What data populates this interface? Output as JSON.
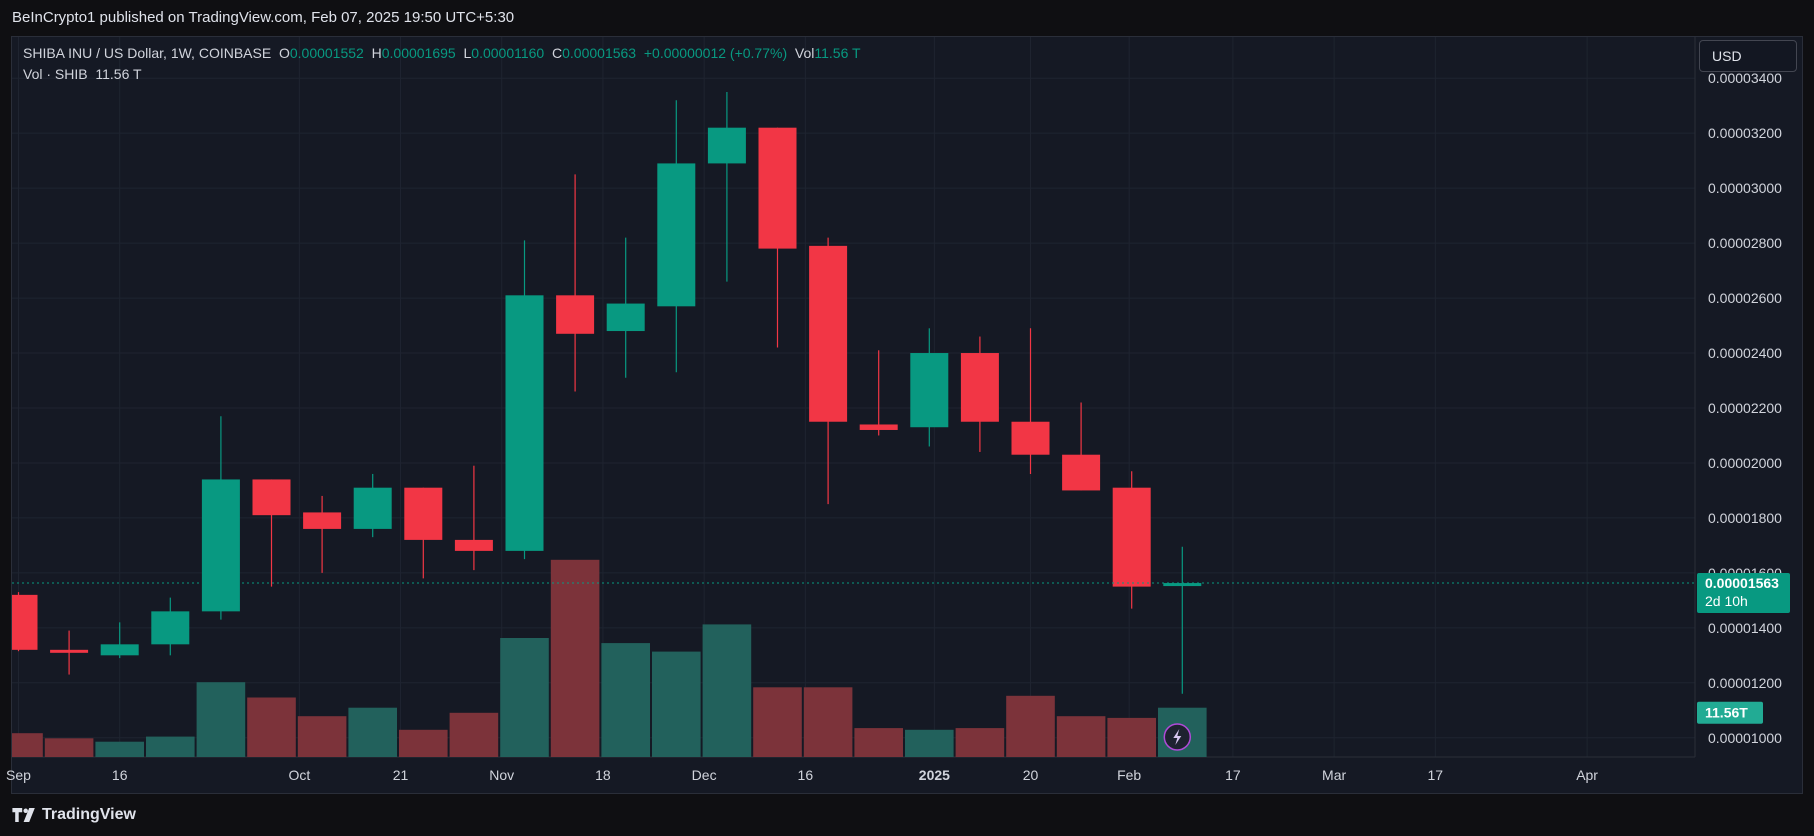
{
  "header": {
    "published_text": "BeInCrypto1 published on TradingView.com, Feb 07, 2025 19:50 UTC+5:30"
  },
  "legend": {
    "symbol": "SHIBA INU / US Dollar, 1W, COINBASE",
    "open_label": "O",
    "open": "0.00001552",
    "high_label": "H",
    "high": "0.00001695",
    "low_label": "L",
    "low": "0.00001160",
    "close_label": "C",
    "close": "0.00001563",
    "change": "+0.00000012 (+0.77%)",
    "vol_label": "Vol",
    "vol": "11.56 T",
    "volume_series": "Vol · SHIB",
    "volume_value": "11.56 T"
  },
  "currency_button": "USD",
  "footer": {
    "brand": "TradingView"
  },
  "colors": {
    "up": "#089981",
    "down": "#f23645",
    "up_vol": "#22615c",
    "down_vol": "#7c333a",
    "bg": "#151924",
    "grid": "#1f2430"
  },
  "chart_data": {
    "type": "candlestick",
    "price_axis": {
      "ylim": [
        9.3e-06,
        3.55e-05
      ],
      "ticks": [
        "0.00001000",
        "0.00001200",
        "0.00001400",
        "0.00001600",
        "0.00001800",
        "0.00002000",
        "0.00002200",
        "0.00002400",
        "0.00002600",
        "0.00002800",
        "0.00003000",
        "0.00003200",
        "0.00003400"
      ]
    },
    "time_axis": {
      "labels": [
        {
          "label": "Sep",
          "week": 0
        },
        {
          "label": "16",
          "week": 2
        },
        {
          "label": "Oct",
          "week": 5.55
        },
        {
          "label": "21",
          "week": 7.55
        },
        {
          "label": "Nov",
          "week": 9.55
        },
        {
          "label": "18",
          "week": 11.55
        },
        {
          "label": "Dec",
          "week": 13.55
        },
        {
          "label": "16",
          "week": 15.55
        },
        {
          "label": "2025",
          "week": 18.1
        },
        {
          "label": "20",
          "week": 20
        },
        {
          "label": "Feb",
          "week": 21.95
        },
        {
          "label": "17",
          "week": 24
        },
        {
          "label": "Mar",
          "week": 26
        },
        {
          "label": "17",
          "week": 28
        },
        {
          "label": "Apr",
          "week": 31
        }
      ]
    },
    "candles": [
      {
        "o": 1.52e-05,
        "h": 1.53e-05,
        "l": 1.315e-05,
        "c": 1.32e-05,
        "v": 0.7
      },
      {
        "o": 1.32e-05,
        "h": 1.39e-05,
        "l": 1.23e-05,
        "c": 1.31e-05,
        "v": 0.55
      },
      {
        "o": 1.3e-05,
        "h": 1.42e-05,
        "l": 1.29e-05,
        "c": 1.34e-05,
        "v": 0.45
      },
      {
        "o": 1.34e-05,
        "h": 1.51e-05,
        "l": 1.3e-05,
        "c": 1.46e-05,
        "v": 0.6
      },
      {
        "o": 1.46e-05,
        "h": 2.17e-05,
        "l": 1.43e-05,
        "c": 1.94e-05,
        "v": 2.2
      },
      {
        "o": 1.94e-05,
        "h": 1.94e-05,
        "l": 1.55e-05,
        "c": 1.81e-05,
        "v": 1.75
      },
      {
        "o": 1.82e-05,
        "h": 1.88e-05,
        "l": 1.6e-05,
        "c": 1.76e-05,
        "v": 1.2
      },
      {
        "o": 1.76e-05,
        "h": 1.96e-05,
        "l": 1.73e-05,
        "c": 1.91e-05,
        "v": 1.45
      },
      {
        "o": 1.91e-05,
        "h": 1.91e-05,
        "l": 1.58e-05,
        "c": 1.72e-05,
        "v": 0.8
      },
      {
        "o": 1.72e-05,
        "h": 1.99e-05,
        "l": 1.61e-05,
        "c": 1.68e-05,
        "v": 1.3
      },
      {
        "o": 1.68e-05,
        "h": 2.81e-05,
        "l": 1.65e-05,
        "c": 2.61e-05,
        "v": 3.5
      },
      {
        "o": 2.61e-05,
        "h": 3.05e-05,
        "l": 2.26e-05,
        "c": 2.47e-05,
        "v": 5.8
      },
      {
        "o": 2.48e-05,
        "h": 2.82e-05,
        "l": 2.31e-05,
        "c": 2.58e-05,
        "v": 3.35
      },
      {
        "o": 2.57e-05,
        "h": 3.32e-05,
        "l": 2.33e-05,
        "c": 3.09e-05,
        "v": 3.1
      },
      {
        "o": 3.09e-05,
        "h": 3.35e-05,
        "l": 2.66e-05,
        "c": 3.22e-05,
        "v": 3.9
      },
      {
        "o": 3.22e-05,
        "h": 3.22e-05,
        "l": 2.42e-05,
        "c": 2.78e-05,
        "v": 2.05
      },
      {
        "o": 2.79e-05,
        "h": 2.82e-05,
        "l": 1.85e-05,
        "c": 2.15e-05,
        "v": 2.05
      },
      {
        "o": 2.14e-05,
        "h": 2.41e-05,
        "l": 2.1e-05,
        "c": 2.12e-05,
        "v": 0.85
      },
      {
        "o": 2.13e-05,
        "h": 2.49e-05,
        "l": 2.06e-05,
        "c": 2.4e-05,
        "v": 0.8
      },
      {
        "o": 2.4e-05,
        "h": 2.46e-05,
        "l": 2.04e-05,
        "c": 2.15e-05,
        "v": 0.85
      },
      {
        "o": 2.15e-05,
        "h": 2.49e-05,
        "l": 1.96e-05,
        "c": 2.03e-05,
        "v": 1.8
      },
      {
        "o": 2.03e-05,
        "h": 2.22e-05,
        "l": 1.9e-05,
        "c": 1.9e-05,
        "v": 1.2
      },
      {
        "o": 1.91e-05,
        "h": 1.97e-05,
        "l": 1.47e-05,
        "c": 1.55e-05,
        "v": 1.15
      },
      {
        "o": 1.552e-05,
        "h": 1.695e-05,
        "l": 1.16e-05,
        "c": 1.563e-05,
        "v": 1.45
      }
    ],
    "last_price": {
      "value": 1.563e-05,
      "label": "0.00001563",
      "countdown": "2d 10h"
    },
    "last_volume_label": "11.56T"
  }
}
